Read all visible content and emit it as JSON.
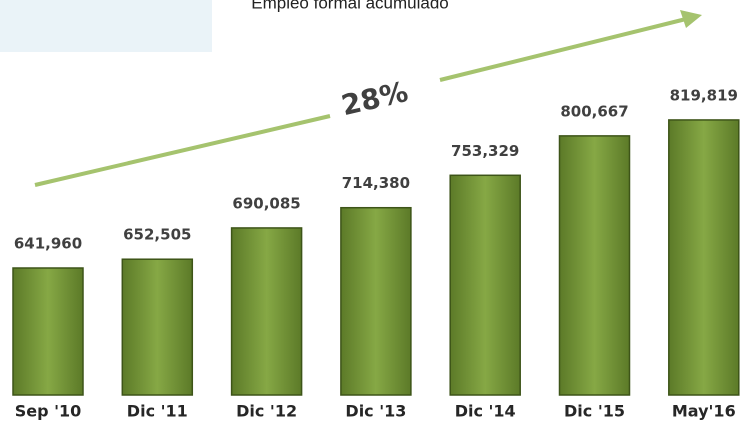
{
  "chart_data": {
    "type": "bar",
    "title": "Empleo formal acumulado",
    "annotation": "28%",
    "categories": [
      "Sep '10",
      "Dic '11",
      "Dic '12",
      "Dic '13",
      "Dic '14",
      "Dic '15",
      "May'16"
    ],
    "values": [
      641960,
      652505,
      690085,
      714380,
      753329,
      800667,
      819819
    ],
    "value_labels": [
      "641,960",
      "652,505",
      "690,085",
      "714,380",
      "753,329",
      "800,667",
      "819,819"
    ],
    "color": "#76963a",
    "ylim": [
      489400,
      963900
    ]
  }
}
